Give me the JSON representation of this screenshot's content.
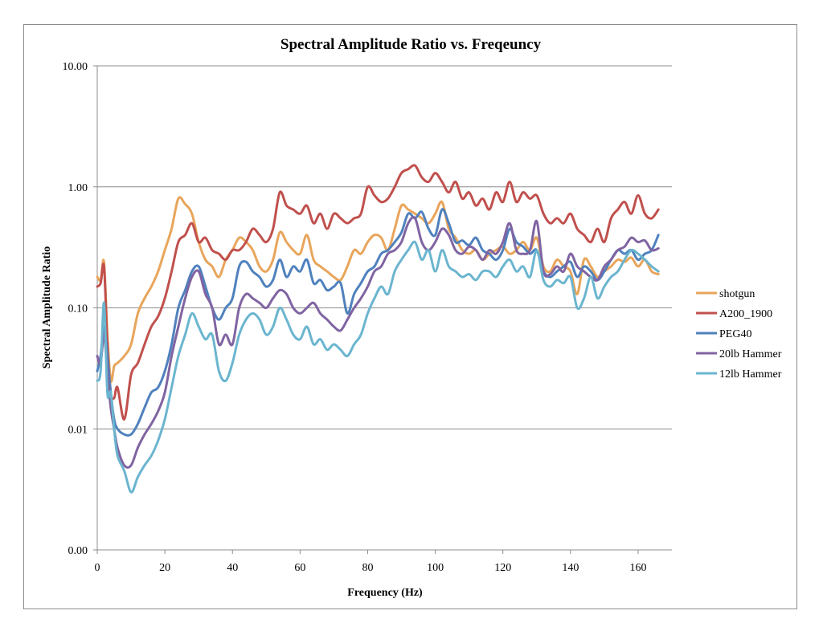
{
  "chart_data": {
    "type": "line",
    "title": "Spectral Amplitude Ratio vs. Freqeuncy",
    "xlabel": "Frequency (Hz)",
    "ylabel": "Spectral Amplitude Ratio",
    "xlim": [
      0,
      170
    ],
    "ylim": [
      0.001,
      10
    ],
    "yscale": "log",
    "xticks": [
      0,
      20,
      40,
      60,
      80,
      100,
      120,
      140,
      160
    ],
    "yticks": [
      {
        "value": 0.001,
        "label": "0.00"
      },
      {
        "value": 0.01,
        "label": "0.01"
      },
      {
        "value": 0.1,
        "label": "0.10"
      },
      {
        "value": 1,
        "label": "1.00"
      },
      {
        "value": 10,
        "label": "10.00"
      }
    ],
    "grid": "horizontal major",
    "legend_position": "right",
    "x": [
      0,
      1,
      2,
      3,
      4,
      5,
      6,
      8,
      10,
      12,
      14,
      16,
      18,
      20,
      22,
      24,
      26,
      28,
      30,
      32,
      34,
      36,
      38,
      40,
      42,
      44,
      46,
      48,
      50,
      52,
      54,
      56,
      58,
      60,
      62,
      64,
      66,
      68,
      70,
      72,
      74,
      76,
      78,
      80,
      82,
      84,
      86,
      88,
      90,
      92,
      94,
      96,
      98,
      100,
      102,
      104,
      106,
      108,
      110,
      112,
      114,
      116,
      118,
      120,
      122,
      124,
      126,
      128,
      130,
      132,
      134,
      136,
      138,
      140,
      142,
      144,
      146,
      148,
      150,
      152,
      154,
      156,
      158,
      160,
      162,
      164,
      166
    ],
    "series": [
      {
        "name": "shotgun",
        "color": "#e8a55b",
        "values": [
          0.18,
          0.17,
          0.24,
          0.06,
          0.025,
          0.033,
          0.035,
          0.04,
          0.05,
          0.09,
          0.12,
          0.15,
          0.2,
          0.3,
          0.45,
          0.8,
          0.72,
          0.6,
          0.35,
          0.25,
          0.22,
          0.18,
          0.25,
          0.3,
          0.38,
          0.35,
          0.3,
          0.22,
          0.2,
          0.25,
          0.42,
          0.35,
          0.3,
          0.28,
          0.4,
          0.25,
          0.22,
          0.2,
          0.18,
          0.17,
          0.22,
          0.3,
          0.28,
          0.35,
          0.4,
          0.38,
          0.3,
          0.45,
          0.7,
          0.65,
          0.6,
          0.55,
          0.5,
          0.6,
          0.75,
          0.45,
          0.38,
          0.3,
          0.28,
          0.3,
          0.25,
          0.28,
          0.3,
          0.32,
          0.28,
          0.3,
          0.35,
          0.3,
          0.38,
          0.22,
          0.2,
          0.25,
          0.22,
          0.2,
          0.13,
          0.25,
          0.22,
          0.18,
          0.2,
          0.22,
          0.25,
          0.24,
          0.26,
          0.22,
          0.25,
          0.2,
          0.19
        ]
      },
      {
        "name": "A200_1900",
        "color": "#c0504d",
        "values": [
          0.15,
          0.16,
          0.22,
          0.05,
          0.02,
          0.018,
          0.022,
          0.012,
          0.028,
          0.035,
          0.05,
          0.07,
          0.085,
          0.12,
          0.2,
          0.35,
          0.4,
          0.5,
          0.35,
          0.38,
          0.3,
          0.28,
          0.25,
          0.3,
          0.3,
          0.35,
          0.45,
          0.4,
          0.35,
          0.45,
          0.9,
          0.7,
          0.65,
          0.6,
          0.7,
          0.5,
          0.6,
          0.45,
          0.6,
          0.55,
          0.5,
          0.55,
          0.6,
          1.0,
          0.85,
          0.75,
          0.8,
          1.0,
          1.3,
          1.4,
          1.5,
          1.2,
          1.1,
          1.3,
          1.1,
          0.9,
          1.1,
          0.8,
          0.9,
          0.7,
          0.8,
          0.65,
          0.9,
          0.75,
          1.1,
          0.75,
          0.9,
          0.8,
          0.85,
          0.6,
          0.5,
          0.55,
          0.5,
          0.6,
          0.45,
          0.4,
          0.35,
          0.45,
          0.35,
          0.55,
          0.65,
          0.75,
          0.6,
          0.85,
          0.6,
          0.55,
          0.65
        ]
      },
      {
        "name": "PEG40",
        "color": "#4f81bd",
        "values": [
          0.03,
          0.04,
          0.07,
          0.04,
          0.02,
          0.012,
          0.01,
          0.009,
          0.009,
          0.011,
          0.015,
          0.02,
          0.022,
          0.03,
          0.05,
          0.1,
          0.14,
          0.2,
          0.22,
          0.15,
          0.1,
          0.08,
          0.1,
          0.12,
          0.22,
          0.24,
          0.2,
          0.18,
          0.15,
          0.17,
          0.25,
          0.18,
          0.22,
          0.2,
          0.25,
          0.16,
          0.17,
          0.14,
          0.15,
          0.16,
          0.09,
          0.13,
          0.16,
          0.2,
          0.22,
          0.28,
          0.3,
          0.35,
          0.42,
          0.6,
          0.55,
          0.62,
          0.45,
          0.4,
          0.65,
          0.5,
          0.35,
          0.36,
          0.33,
          0.38,
          0.3,
          0.28,
          0.25,
          0.3,
          0.45,
          0.35,
          0.32,
          0.28,
          0.3,
          0.2,
          0.18,
          0.2,
          0.22,
          0.24,
          0.18,
          0.22,
          0.2,
          0.17,
          0.2,
          0.25,
          0.3,
          0.28,
          0.3,
          0.25,
          0.28,
          0.3,
          0.4
        ]
      },
      {
        "name": "20lb Hammer",
        "color": "#8064a2",
        "values": [
          0.04,
          0.035,
          0.06,
          0.03,
          0.015,
          0.01,
          0.007,
          0.005,
          0.005,
          0.007,
          0.009,
          0.011,
          0.014,
          0.02,
          0.04,
          0.07,
          0.12,
          0.18,
          0.2,
          0.13,
          0.1,
          0.05,
          0.06,
          0.05,
          0.1,
          0.13,
          0.12,
          0.11,
          0.1,
          0.12,
          0.14,
          0.13,
          0.1,
          0.09,
          0.1,
          0.11,
          0.09,
          0.08,
          0.07,
          0.065,
          0.08,
          0.1,
          0.12,
          0.15,
          0.2,
          0.22,
          0.28,
          0.3,
          0.35,
          0.5,
          0.55,
          0.35,
          0.3,
          0.35,
          0.45,
          0.4,
          0.3,
          0.28,
          0.32,
          0.3,
          0.25,
          0.3,
          0.28,
          0.35,
          0.5,
          0.3,
          0.28,
          0.3,
          0.52,
          0.2,
          0.19,
          0.22,
          0.2,
          0.28,
          0.22,
          0.2,
          0.18,
          0.17,
          0.22,
          0.25,
          0.3,
          0.32,
          0.38,
          0.35,
          0.36,
          0.3,
          0.31
        ]
      },
      {
        "name": "12lb Hammer",
        "color": "#6bb5cf",
        "values": [
          0.025,
          0.03,
          0.11,
          0.02,
          0.02,
          0.01,
          0.006,
          0.0045,
          0.003,
          0.004,
          0.005,
          0.006,
          0.008,
          0.012,
          0.022,
          0.04,
          0.06,
          0.09,
          0.07,
          0.055,
          0.06,
          0.03,
          0.025,
          0.035,
          0.06,
          0.08,
          0.09,
          0.08,
          0.06,
          0.07,
          0.1,
          0.08,
          0.06,
          0.055,
          0.07,
          0.05,
          0.055,
          0.045,
          0.05,
          0.045,
          0.04,
          0.05,
          0.06,
          0.09,
          0.12,
          0.15,
          0.13,
          0.2,
          0.25,
          0.3,
          0.35,
          0.25,
          0.3,
          0.2,
          0.3,
          0.22,
          0.2,
          0.18,
          0.19,
          0.17,
          0.2,
          0.2,
          0.18,
          0.22,
          0.25,
          0.2,
          0.22,
          0.18,
          0.3,
          0.17,
          0.15,
          0.17,
          0.16,
          0.18,
          0.1,
          0.12,
          0.18,
          0.12,
          0.15,
          0.18,
          0.2,
          0.25,
          0.3,
          0.28,
          0.25,
          0.22,
          0.2
        ]
      }
    ]
  }
}
